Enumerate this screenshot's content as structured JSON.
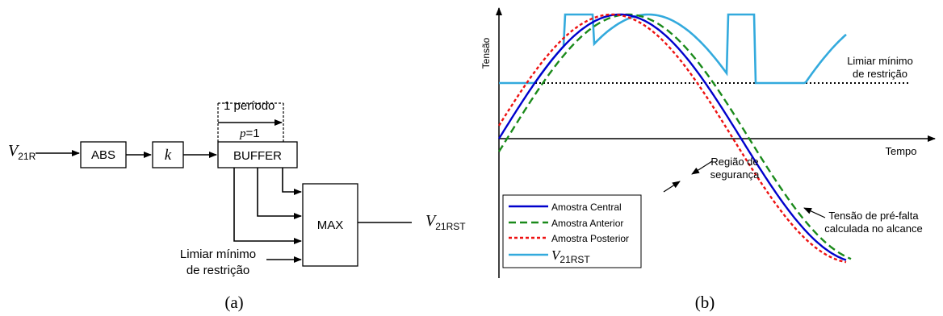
{
  "panel_a": {
    "input": {
      "symbol": "V",
      "subscript": "21R"
    },
    "abs_block": "ABS",
    "k_block": "k",
    "buffer_block": "BUFFER",
    "period_label": "1 período",
    "p_label_var": "p",
    "p_label_val": "=1",
    "max_block": "MAX",
    "output": {
      "symbol": "V",
      "subscript": "21RST"
    },
    "threshold_line1": "Limiar mínimo",
    "threshold_line2": "de restrição",
    "caption": "(a)"
  },
  "panel_b": {
    "y_axis_label": "Tensão",
    "x_axis_label": "Tempo",
    "threshold_line1": "Limiar mínimo",
    "threshold_line2": "de restrição",
    "safety_line1": "Região de",
    "safety_line2": "segurança",
    "prefault_line1": "Tensão de pré-falta",
    "prefault_line2": "calculada no alcance",
    "caption": "(b)",
    "legend": [
      {
        "label": "Amostra Central",
        "color": "#0000cc",
        "dash": "solid"
      },
      {
        "label": "Amostra Anterior",
        "color": "#1a8a1a",
        "dash": "dashed"
      },
      {
        "label": "Amostra Posterior",
        "color": "#ee1111",
        "dash": "dotted"
      },
      {
        "label_symbol": "V",
        "label_subscript": "21RST",
        "color": "#33aadd",
        "dash": "solid"
      }
    ]
  }
}
